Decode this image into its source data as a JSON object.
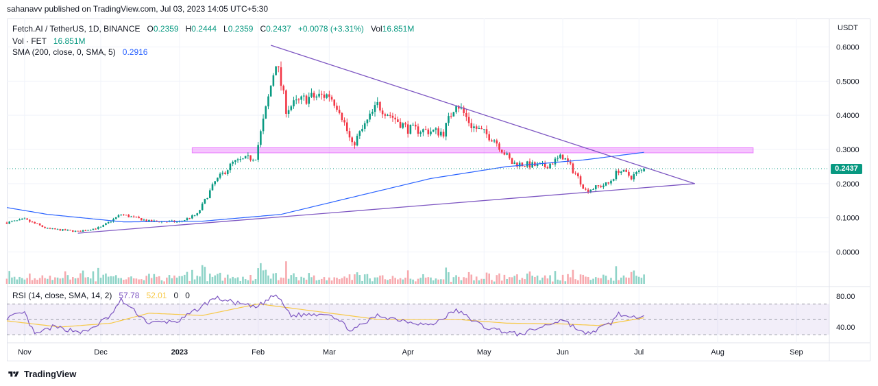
{
  "publisher": "sahanavv published on TradingView.com, Jul 03, 2023 14:05 UTC+5:30",
  "legend": {
    "symbol": "Fetch.AI / TetherUS, 1D, BINANCE",
    "open_label": "O",
    "open": "0.2359",
    "high_label": "H",
    "high": "0.2444",
    "low_label": "L",
    "low": "0.2359",
    "close_label": "C",
    "close": "0.2437",
    "change": "+0.0078 (+3.31%)",
    "vol_label": "Vol",
    "vol": "16.851M",
    "vol_series": "Vol · FET",
    "vol_series_value": "16.851M",
    "sma_label": "SMA (200, close, 0, SMA, 5)",
    "sma_value": "0.2916"
  },
  "rsi_legend": {
    "label": "RSI (14, close, SMA, 14, 2)",
    "rsi_value": "57.78",
    "rsi_sma_value": "52.01",
    "extra1": "0",
    "extra2": "0"
  },
  "currency": "USDT",
  "last_price": "0.2437",
  "footer": "TradingView",
  "colors": {
    "up": "#089981",
    "down": "#f23645",
    "sma": "#2962ff",
    "trendline": "#7e57c2",
    "zone": "#e040fb",
    "rsi": "#7e57c2",
    "rsi_sma": "#f7c948",
    "volume_up": "#8fd4c8",
    "volume_down": "#f7a9ae"
  },
  "chart_data": {
    "type": "candlestick",
    "price_axis": {
      "ticks": [
        "0.6000",
        "0.5000",
        "0.4000",
        "0.3000",
        "0.2000",
        "0.1000",
        "0.0000"
      ],
      "tick_values": [
        0.6,
        0.5,
        0.4,
        0.3,
        0.2,
        0.1,
        0.0
      ]
    },
    "rsi_axis": {
      "ticks": [
        "80.00",
        "40.00"
      ],
      "tick_values": [
        80,
        40
      ],
      "bands": [
        70,
        50,
        30
      ]
    },
    "time_axis": {
      "labels": [
        "Nov",
        "Dec",
        "2023",
        "Feb",
        "Mar",
        "Apr",
        "May",
        "Jun",
        "Jul",
        "Aug",
        "Sep"
      ],
      "dates": [
        "2022-11-01",
        "2022-12-01",
        "2023-01-01",
        "2023-02-01",
        "2023-03-01",
        "2023-04-01",
        "2023-05-01",
        "2023-06-01",
        "2023-07-01",
        "2023-08-01",
        "2023-09-01"
      ]
    },
    "price_keypoints": [
      [
        "2022-10-25",
        0.086
      ],
      [
        "2022-11-01",
        0.095
      ],
      [
        "2022-11-10",
        0.068
      ],
      [
        "2022-11-22",
        0.06
      ],
      [
        "2022-12-01",
        0.072
      ],
      [
        "2022-12-09",
        0.11
      ],
      [
        "2022-12-20",
        0.09
      ],
      [
        "2023-01-01",
        0.088
      ],
      [
        "2023-01-08",
        0.11
      ],
      [
        "2023-01-15",
        0.205
      ],
      [
        "2023-01-22",
        0.26
      ],
      [
        "2023-01-31",
        0.28
      ],
      [
        "2023-02-05",
        0.45
      ],
      [
        "2023-02-08",
        0.56
      ],
      [
        "2023-02-12",
        0.42
      ],
      [
        "2023-02-20",
        0.45
      ],
      [
        "2023-03-01",
        0.46
      ],
      [
        "2023-03-05",
        0.42
      ],
      [
        "2023-03-10",
        0.31
      ],
      [
        "2023-03-20",
        0.43
      ],
      [
        "2023-04-01",
        0.36
      ],
      [
        "2023-04-15",
        0.35
      ],
      [
        "2023-04-20",
        0.44
      ],
      [
        "2023-04-26",
        0.37
      ],
      [
        "2023-05-05",
        0.33
      ],
      [
        "2023-05-12",
        0.26
      ],
      [
        "2023-05-25",
        0.25
      ],
      [
        "2023-06-01",
        0.28
      ],
      [
        "2023-06-06",
        0.23
      ],
      [
        "2023-06-10",
        0.18
      ],
      [
        "2023-06-19",
        0.2
      ],
      [
        "2023-06-23",
        0.24
      ],
      [
        "2023-06-28",
        0.22
      ],
      [
        "2023-07-03",
        0.2437
      ]
    ],
    "sma200_keypoints": [
      [
        "2022-10-25",
        0.13
      ],
      [
        "2022-11-10",
        0.11
      ],
      [
        "2022-12-10",
        0.088
      ],
      [
        "2023-01-10",
        0.09
      ],
      [
        "2023-02-10",
        0.11
      ],
      [
        "2023-03-10",
        0.16
      ],
      [
        "2023-04-10",
        0.215
      ],
      [
        "2023-05-10",
        0.25
      ],
      [
        "2023-06-10",
        0.27
      ],
      [
        "2023-07-03",
        0.2916
      ]
    ],
    "rsi_keypoints": [
      [
        "2022-10-25",
        52
      ],
      [
        "2022-11-01",
        58
      ],
      [
        "2022-11-05",
        30
      ],
      [
        "2022-11-12",
        40
      ],
      [
        "2022-11-25",
        33
      ],
      [
        "2022-12-05",
        55
      ],
      [
        "2022-12-09",
        75
      ],
      [
        "2022-12-20",
        45
      ],
      [
        "2023-01-01",
        48
      ],
      [
        "2023-01-15",
        78
      ],
      [
        "2023-01-31",
        65
      ],
      [
        "2023-02-08",
        82
      ],
      [
        "2023-02-14",
        55
      ],
      [
        "2023-03-01",
        58
      ],
      [
        "2023-03-10",
        35
      ],
      [
        "2023-03-20",
        55
      ],
      [
        "2023-04-10",
        42
      ],
      [
        "2023-04-20",
        62
      ],
      [
        "2023-05-01",
        40
      ],
      [
        "2023-05-15",
        30
      ],
      [
        "2023-06-01",
        50
      ],
      [
        "2023-06-10",
        30
      ],
      [
        "2023-06-20",
        45
      ],
      [
        "2023-06-23",
        58
      ],
      [
        "2023-06-28",
        50
      ],
      [
        "2023-07-03",
        57.78
      ]
    ],
    "rsi_sma_keypoints": [
      [
        "2022-10-25",
        48
      ],
      [
        "2022-11-15",
        40
      ],
      [
        "2022-12-05",
        45
      ],
      [
        "2022-12-20",
        58
      ],
      [
        "2023-01-10",
        55
      ],
      [
        "2023-02-01",
        70
      ],
      [
        "2023-02-20",
        62
      ],
      [
        "2023-03-20",
        50
      ],
      [
        "2023-04-20",
        50
      ],
      [
        "2023-05-10",
        45
      ],
      [
        "2023-06-01",
        44
      ],
      [
        "2023-06-15",
        42
      ],
      [
        "2023-07-03",
        52.01
      ]
    ],
    "trendlines": [
      {
        "name": "upper",
        "points": [
          [
            "2023-02-06",
            0.605
          ],
          [
            "2023-07-23",
            0.2
          ]
        ]
      },
      {
        "name": "lower",
        "points": [
          [
            "2022-11-22",
            0.055
          ],
          [
            "2023-07-23",
            0.2
          ]
        ]
      }
    ],
    "zone": {
      "from": "2023-01-06",
      "to": "2023-08-15",
      "low": 0.29,
      "high": 0.305
    }
  }
}
